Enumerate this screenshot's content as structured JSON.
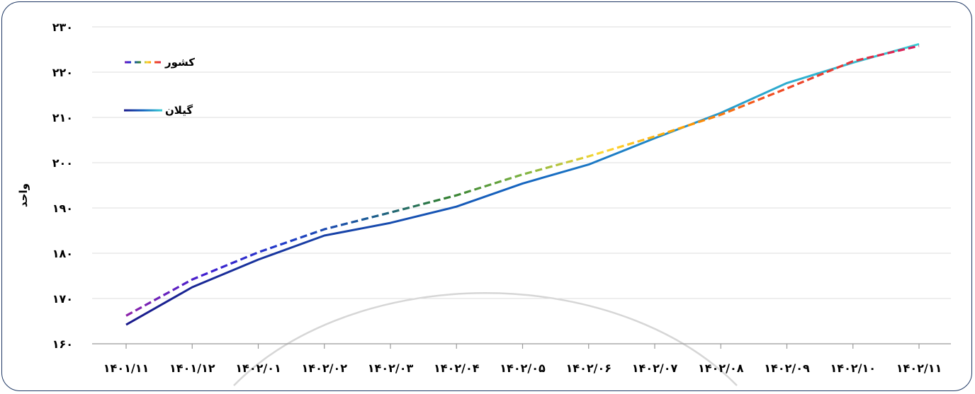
{
  "chart_data": {
    "type": "line",
    "title": "",
    "xlabel": "",
    "ylabel": "واحد",
    "categories": [
      "۱۴۰۱/۱۱",
      "۱۴۰۱/۱۲",
      "۱۴۰۲/۰۱",
      "۱۴۰۲/۰۲",
      "۱۴۰۲/۰۳",
      "۱۴۰۲/۰۴",
      "۱۴۰۲/۰۵",
      "۱۴۰۲/۰۶",
      "۱۴۰۲/۰۷",
      "۱۴۰۲/۰۸",
      "۱۴۰۲/۰۹",
      "۱۴۰۲/۱۰",
      "۱۴۰۲/۱۱"
    ],
    "y_tick_labels": [
      "۱۶۰",
      "۱۷۰",
      "۱۸۰",
      "۱۹۰",
      "۲۰۰",
      "۲۱۰",
      "۲۲۰",
      "۲۳۰"
    ],
    "ylim": [
      160,
      230
    ],
    "grid": true,
    "legend_position": "top-left",
    "series": [
      {
        "name": "کشور",
        "style": "dashed-multicolor",
        "values": [
          166.2,
          174.2,
          180.2,
          185.3,
          189.0,
          192.8,
          197.4,
          201.4,
          205.8,
          210.6,
          216.4,
          222.4,
          225.8
        ]
      },
      {
        "name": "گیلان",
        "style": "solid-gradient-blue",
        "values": [
          164.2,
          172.5,
          178.6,
          183.9,
          186.7,
          190.3,
          195.4,
          199.6,
          205.4,
          211.0,
          217.6,
          222.1,
          226.2
        ]
      }
    ],
    "colors": {
      "axis": "#9a9a9a",
      "grid": "#dcdcdc",
      "frame": "#1f3864",
      "gilan_start": "#1a1a8c",
      "gilan_mid": "#1565c0",
      "gilan_end": "#3ad0d6",
      "country_gradient": [
        "#8e24aa",
        "#3f1fd0",
        "#1e3cc8",
        "#1b5a9a",
        "#2e7d32",
        "#7cb342",
        "#fdd835",
        "#ffa000",
        "#f4511e",
        "#e53935",
        "#d81b60"
      ]
    }
  }
}
